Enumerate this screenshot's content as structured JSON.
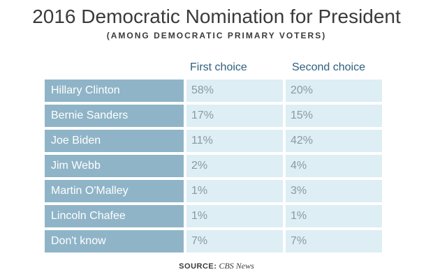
{
  "chart_data": {
    "type": "table",
    "title": "2016 Democratic Nomination for President",
    "subtitle": "(AMONG DEMOCRATIC PRIMARY VOTERS)",
    "columns": [
      "First choice",
      "Second choice"
    ],
    "rows": [
      {
        "name": "Hillary Clinton",
        "first": "58%",
        "second": "20%"
      },
      {
        "name": "Bernie Sanders",
        "first": "17%",
        "second": "15%"
      },
      {
        "name": "Joe Biden",
        "first": "11%",
        "second": "42%"
      },
      {
        "name": "Jim Webb",
        "first": "2%",
        "second": "4%"
      },
      {
        "name": "Martin O'Malley",
        "first": "1%",
        "second": "3%"
      },
      {
        "name": "Lincoln Chafee",
        "first": "1%",
        "second": "1%"
      },
      {
        "name": "Don't know",
        "first": "7%",
        "second": "7%"
      }
    ],
    "source_label": "SOURCE:",
    "source": "CBS News",
    "colors": {
      "name_cell_bg": "#8fb4c7",
      "value_cell_bg": "#ddeef4",
      "header_text": "#2f5f7f",
      "value_text": "#8a9aa3"
    }
  }
}
